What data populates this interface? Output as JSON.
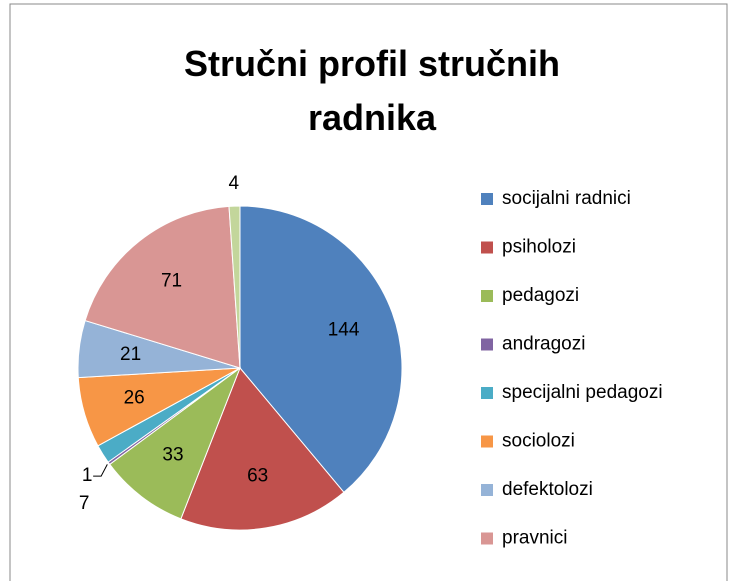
{
  "chart_data": {
    "type": "pie",
    "title": "Stručni profil stručnih radnika",
    "categories": [
      "socijalni radnici",
      "psiholozi",
      "pedagozi",
      "andragozi",
      "specijalni pedagozi",
      "sociolozi",
      "defektolozi",
      "pravnici",
      null
    ],
    "values": [
      144,
      63,
      33,
      1,
      7,
      26,
      21,
      71,
      4
    ],
    "colors": [
      "#4f81bd",
      "#c0504d",
      "#9bbb59",
      "#8064a2",
      "#4bacc6",
      "#f79646",
      "#95b3d7",
      "#d99694",
      "#c3d69b"
    ],
    "legend": "right"
  }
}
